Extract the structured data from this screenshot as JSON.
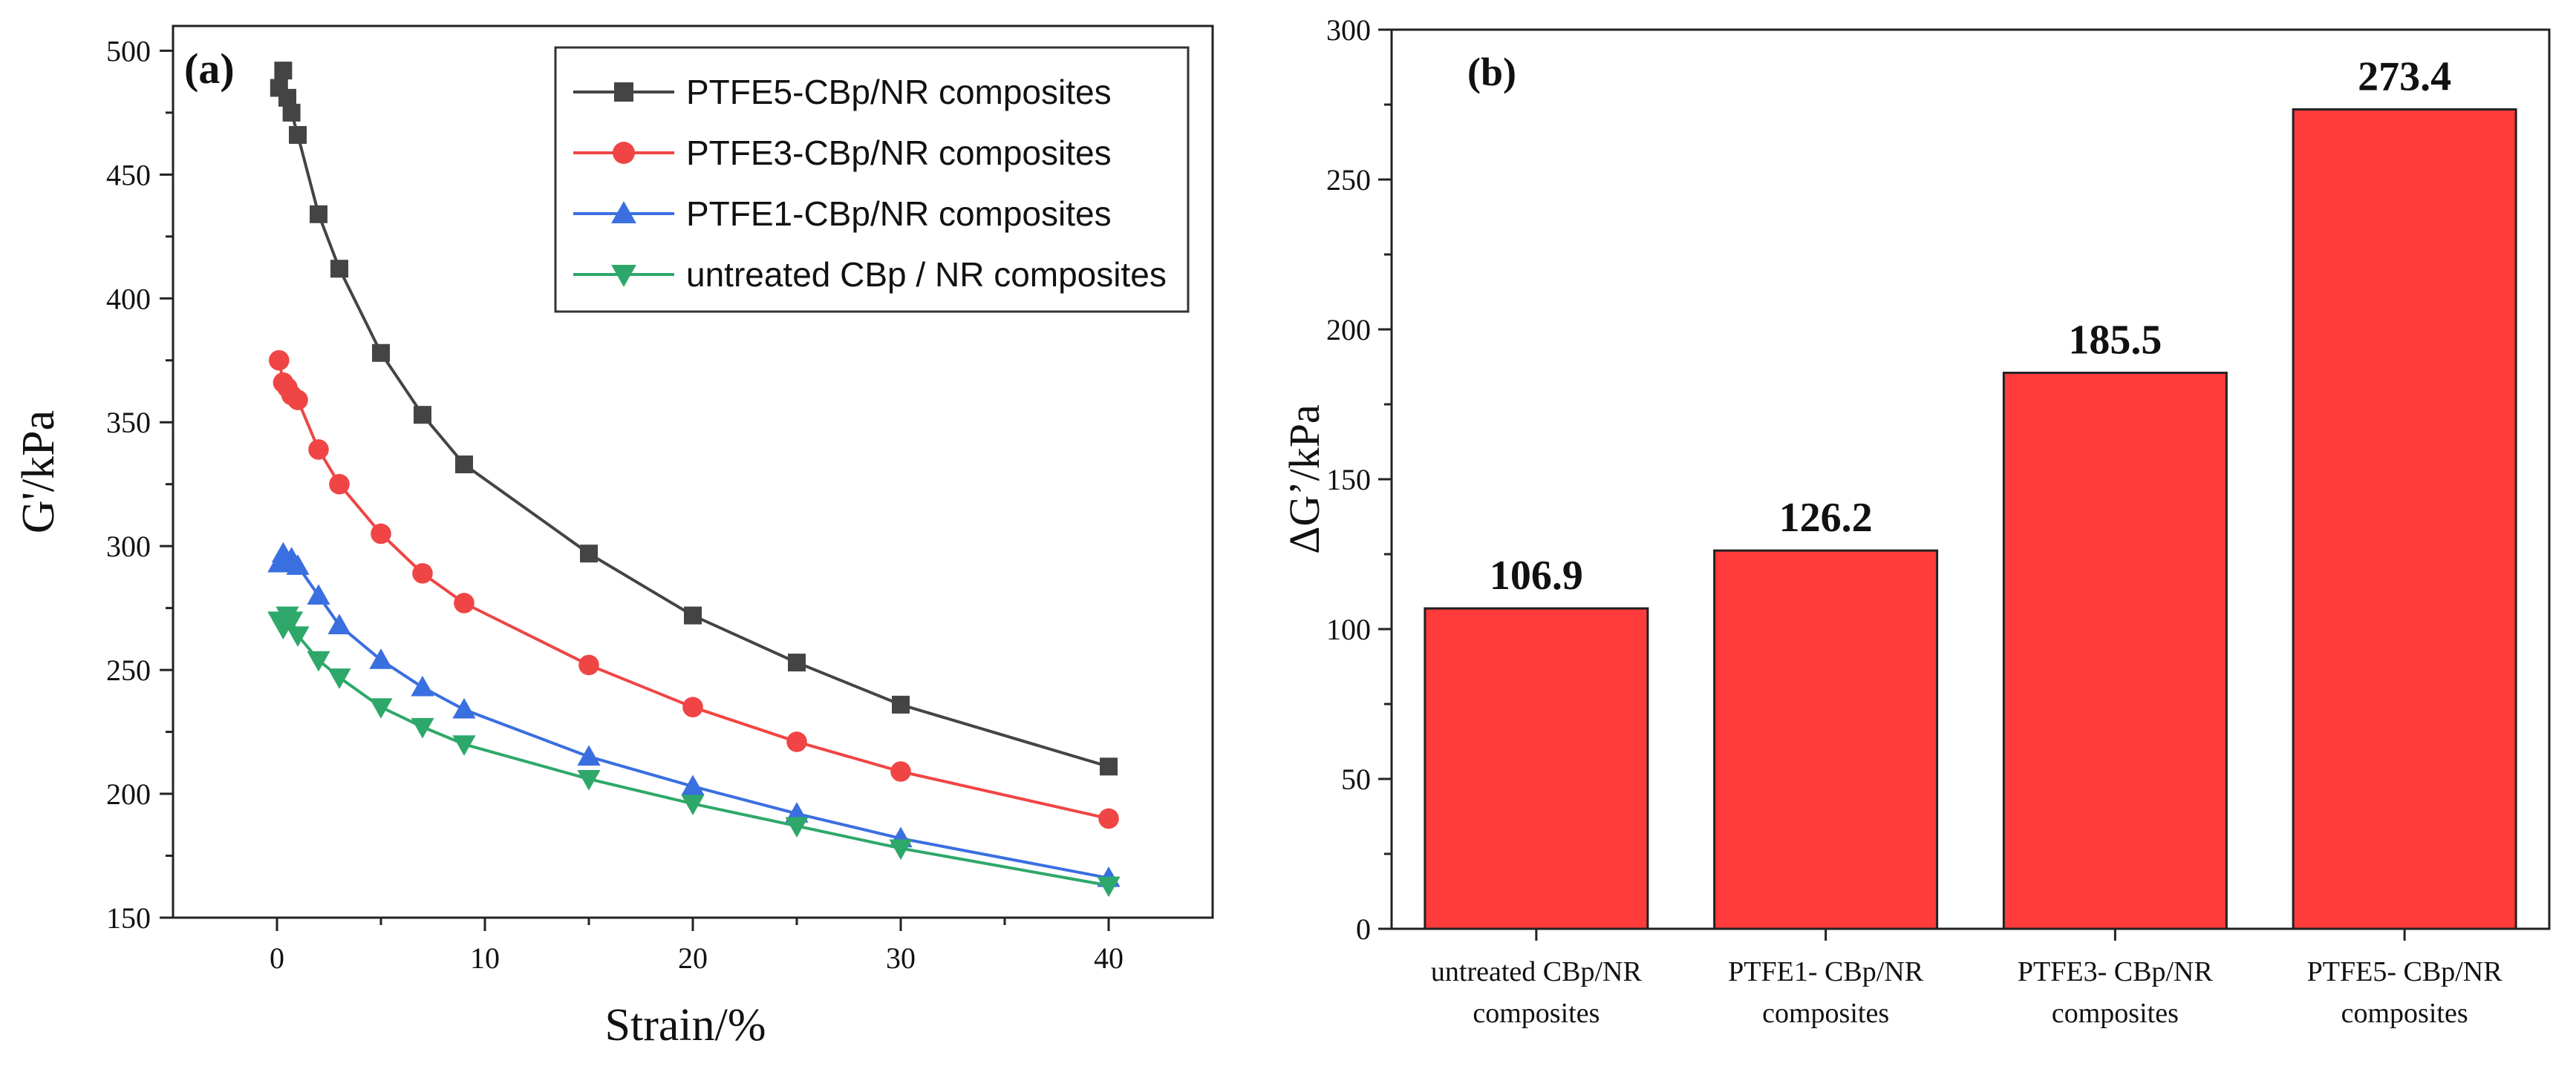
{
  "chart_data": [
    {
      "panel_label": "(a)",
      "type": "line",
      "xlabel": "Strain/%",
      "ylabel": "G'/kPa",
      "xlim": [
        -5,
        45
      ],
      "ylim": [
        150,
        510
      ],
      "xticks": [
        0,
        10,
        20,
        30,
        40
      ],
      "yticks": [
        150,
        200,
        250,
        300,
        350,
        400,
        450,
        500
      ],
      "legend_position": "top-right",
      "series": [
        {
          "name": "PTFE5-CBp/NR composites",
          "color": "#444444",
          "marker": "square",
          "x": [
            0.1,
            0.3,
            0.5,
            0.7,
            1,
            2,
            3,
            5,
            7,
            9,
            15,
            20,
            25,
            30,
            40
          ],
          "y": [
            485,
            492,
            481,
            475,
            466,
            434,
            412,
            378,
            353,
            333,
            297,
            272,
            253,
            236,
            211
          ]
        },
        {
          "name": "PTFE3-CBp/NR composites",
          "color": "#f04545",
          "marker": "circle",
          "x": [
            0.1,
            0.3,
            0.5,
            0.7,
            1,
            2,
            3,
            5,
            7,
            9,
            15,
            20,
            25,
            30,
            40
          ],
          "y": [
            375,
            366,
            364,
            361,
            359,
            339,
            325,
            305,
            289,
            277,
            252,
            235,
            221,
            209,
            190
          ]
        },
        {
          "name": "PTFE1-CBp/NR composites",
          "color": "#3a6fe0",
          "marker": "triangle-up",
          "x": [
            0.1,
            0.3,
            0.5,
            0.7,
            1,
            2,
            3,
            5,
            7,
            9,
            15,
            20,
            25,
            30,
            40
          ],
          "y": [
            293,
            297,
            293,
            295,
            292,
            280,
            268,
            254,
            243,
            234,
            215,
            203,
            192,
            182,
            166
          ]
        },
        {
          "name": "untreated CBp / NR composites",
          "color": "#2ea86a",
          "marker": "triangle-down",
          "x": [
            0.1,
            0.3,
            0.5,
            0.7,
            1,
            2,
            3,
            5,
            7,
            9,
            15,
            20,
            25,
            30,
            40
          ],
          "y": [
            270,
            267,
            272,
            270,
            264,
            254,
            247,
            235,
            227,
            220,
            206,
            196,
            187,
            178,
            163
          ]
        }
      ]
    },
    {
      "panel_label": "(b)",
      "type": "bar",
      "ylabel": "ΔG’/kPa",
      "ylim": [
        0,
        300
      ],
      "yticks": [
        0,
        50,
        100,
        150,
        200,
        250,
        300
      ],
      "bar_color": "#ff3b3b",
      "categories": [
        [
          "untreated CBp/NR",
          "composites"
        ],
        [
          "PTFE1- CBp/NR",
          "composites"
        ],
        [
          "PTFE3- CBp/NR",
          "composites"
        ],
        [
          "PTFE5- CBp/NR",
          "composites"
        ]
      ],
      "values": [
        106.9,
        126.2,
        185.5,
        273.4
      ],
      "value_labels": [
        "106.9",
        "126.2",
        "185.5",
        "273.4"
      ]
    }
  ]
}
